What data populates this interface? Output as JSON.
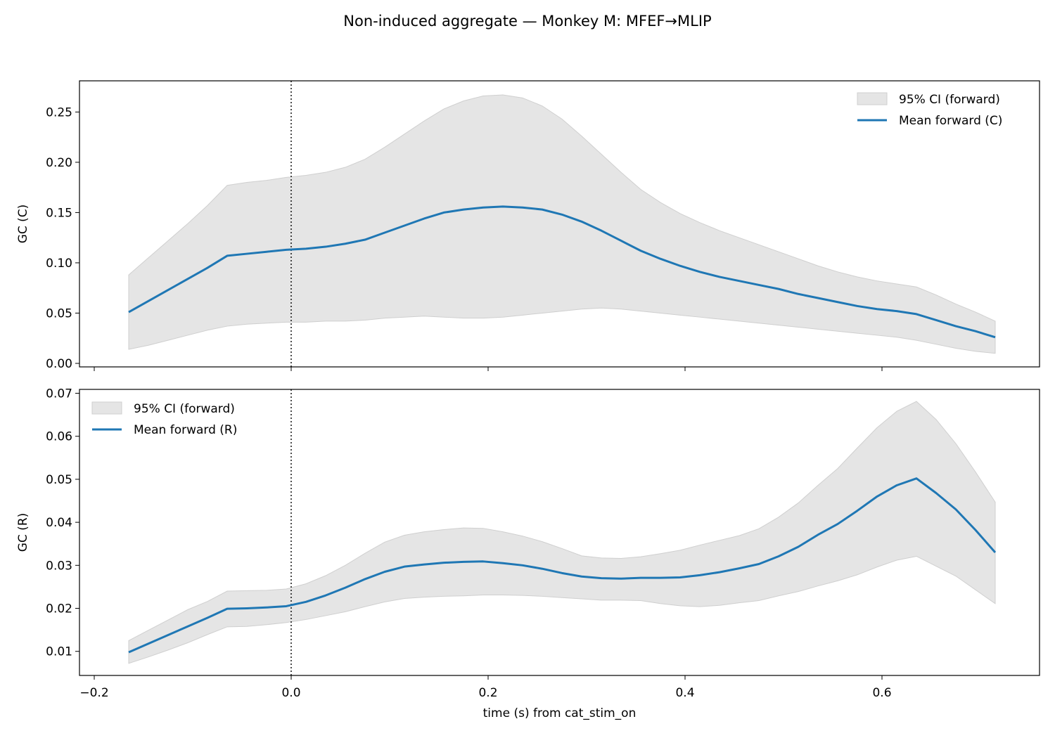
{
  "figure": {
    "title": "Non-induced aggregate — Monkey M: MFEF→MLIP"
  },
  "chart_data": [
    {
      "type": "line",
      "panel": "top",
      "xlabel": "",
      "ylabel": "GC (C)",
      "xlim": [
        -0.215,
        0.76
      ],
      "ylim": [
        -0.0035,
        0.281
      ],
      "xticks": [
        -0.2,
        0.0,
        0.2,
        0.4,
        0.6
      ],
      "xtick_labels_visible": false,
      "yticks": [
        0.0,
        0.05,
        0.1,
        0.15,
        0.2,
        0.25
      ],
      "ytick_labels": [
        "0.00",
        "0.05",
        "0.10",
        "0.15",
        "0.20",
        "0.25"
      ],
      "vline_x": 0.0,
      "legend_position": "upper right",
      "band_name": "95% CI (forward)",
      "line_name": "Mean forward (C)",
      "line_color": "#1f77b4",
      "band_color": "#e5e5e5",
      "x": [
        -0.165,
        -0.145,
        -0.125,
        -0.105,
        -0.085,
        -0.065,
        -0.045,
        -0.025,
        -0.005,
        0.015,
        0.035,
        0.055,
        0.075,
        0.095,
        0.115,
        0.135,
        0.155,
        0.175,
        0.195,
        0.215,
        0.235,
        0.255,
        0.275,
        0.295,
        0.315,
        0.335,
        0.355,
        0.375,
        0.395,
        0.415,
        0.435,
        0.455,
        0.475,
        0.495,
        0.515,
        0.535,
        0.555,
        0.575,
        0.595,
        0.615,
        0.635,
        0.655,
        0.675,
        0.695,
        0.715
      ],
      "mean": [
        0.051,
        0.062,
        0.073,
        0.084,
        0.095,
        0.107,
        0.109,
        0.111,
        0.113,
        0.114,
        0.116,
        0.119,
        0.123,
        0.13,
        0.137,
        0.144,
        0.15,
        0.153,
        0.155,
        0.156,
        0.155,
        0.153,
        0.148,
        0.141,
        0.132,
        0.122,
        0.112,
        0.104,
        0.097,
        0.091,
        0.086,
        0.082,
        0.078,
        0.074,
        0.069,
        0.065,
        0.061,
        0.057,
        0.054,
        0.052,
        0.049,
        0.043,
        0.037,
        0.032,
        0.026
      ],
      "lower": [
        0.014,
        0.018,
        0.023,
        0.028,
        0.033,
        0.037,
        0.039,
        0.04,
        0.041,
        0.041,
        0.042,
        0.042,
        0.043,
        0.045,
        0.046,
        0.047,
        0.046,
        0.045,
        0.045,
        0.046,
        0.048,
        0.05,
        0.052,
        0.054,
        0.055,
        0.054,
        0.052,
        0.05,
        0.048,
        0.046,
        0.044,
        0.042,
        0.04,
        0.038,
        0.036,
        0.034,
        0.032,
        0.03,
        0.028,
        0.026,
        0.023,
        0.019,
        0.015,
        0.012,
        0.01
      ],
      "upper": [
        0.088,
        0.105,
        0.122,
        0.139,
        0.157,
        0.177,
        0.18,
        0.182,
        0.185,
        0.187,
        0.19,
        0.195,
        0.203,
        0.215,
        0.228,
        0.241,
        0.253,
        0.261,
        0.266,
        0.267,
        0.264,
        0.256,
        0.243,
        0.226,
        0.208,
        0.19,
        0.173,
        0.16,
        0.149,
        0.14,
        0.132,
        0.125,
        0.118,
        0.111,
        0.104,
        0.097,
        0.091,
        0.086,
        0.082,
        0.079,
        0.076,
        0.068,
        0.059,
        0.051,
        0.042
      ]
    },
    {
      "type": "line",
      "panel": "bottom",
      "xlabel": "time (s) from cat_stim_on",
      "ylabel": "GC (R)",
      "xlim": [
        -0.215,
        0.76
      ],
      "ylim": [
        0.0044,
        0.0709
      ],
      "xticks": [
        -0.2,
        0.0,
        0.2,
        0.4,
        0.6
      ],
      "xtick_labels": [
        "−0.2",
        "0.0",
        "0.2",
        "0.4",
        "0.6"
      ],
      "yticks": [
        0.01,
        0.02,
        0.03,
        0.04,
        0.05,
        0.06,
        0.07
      ],
      "ytick_labels": [
        "0.01",
        "0.02",
        "0.03",
        "0.04",
        "0.05",
        "0.06",
        "0.07"
      ],
      "vline_x": 0.0,
      "legend_position": "upper left",
      "band_name": "95% CI (forward)",
      "line_name": "Mean forward (R)",
      "line_color": "#1f77b4",
      "band_color": "#e5e5e5",
      "x": [
        -0.165,
        -0.145,
        -0.125,
        -0.105,
        -0.085,
        -0.065,
        -0.045,
        -0.025,
        -0.005,
        0.015,
        0.035,
        0.055,
        0.075,
        0.095,
        0.115,
        0.135,
        0.155,
        0.175,
        0.195,
        0.215,
        0.235,
        0.255,
        0.275,
        0.295,
        0.315,
        0.335,
        0.355,
        0.375,
        0.395,
        0.415,
        0.435,
        0.455,
        0.475,
        0.495,
        0.515,
        0.535,
        0.555,
        0.575,
        0.595,
        0.615,
        0.635,
        0.655,
        0.675,
        0.695,
        0.715
      ],
      "mean": [
        0.0098,
        0.0118,
        0.0138,
        0.0158,
        0.0178,
        0.0199,
        0.02,
        0.0202,
        0.0205,
        0.0215,
        0.023,
        0.0248,
        0.0268,
        0.0285,
        0.0297,
        0.0302,
        0.0306,
        0.0308,
        0.0309,
        0.0305,
        0.03,
        0.0292,
        0.0282,
        0.0274,
        0.027,
        0.0269,
        0.0271,
        0.0271,
        0.0272,
        0.0277,
        0.0284,
        0.0293,
        0.0303,
        0.0321,
        0.0343,
        0.0371,
        0.0396,
        0.0427,
        0.046,
        0.0486,
        0.0502,
        0.0468,
        0.043,
        0.0382,
        0.033
      ],
      "lower": [
        0.0072,
        0.0087,
        0.0103,
        0.012,
        0.0139,
        0.0157,
        0.0158,
        0.0162,
        0.0167,
        0.0174,
        0.0183,
        0.0192,
        0.0204,
        0.0215,
        0.0223,
        0.0226,
        0.0228,
        0.0229,
        0.0231,
        0.0231,
        0.023,
        0.0228,
        0.0225,
        0.0222,
        0.0219,
        0.0219,
        0.0218,
        0.0211,
        0.0206,
        0.0204,
        0.0207,
        0.0213,
        0.0218,
        0.0229,
        0.0239,
        0.0252,
        0.0264,
        0.0278,
        0.0296,
        0.0312,
        0.0321,
        0.0298,
        0.0275,
        0.0243,
        0.0211
      ],
      "upper": [
        0.0125,
        0.0149,
        0.0173,
        0.0197,
        0.0216,
        0.024,
        0.0241,
        0.0242,
        0.0245,
        0.0257,
        0.0276,
        0.03,
        0.0328,
        0.0354,
        0.037,
        0.0378,
        0.0383,
        0.0387,
        0.0386,
        0.0378,
        0.0368,
        0.0355,
        0.0339,
        0.0322,
        0.0317,
        0.0316,
        0.032,
        0.0327,
        0.0335,
        0.0347,
        0.0358,
        0.0369,
        0.0385,
        0.0412,
        0.0445,
        0.0486,
        0.0525,
        0.0573,
        0.062,
        0.0658,
        0.0681,
        0.0639,
        0.0583,
        0.0517,
        0.0447
      ]
    }
  ]
}
